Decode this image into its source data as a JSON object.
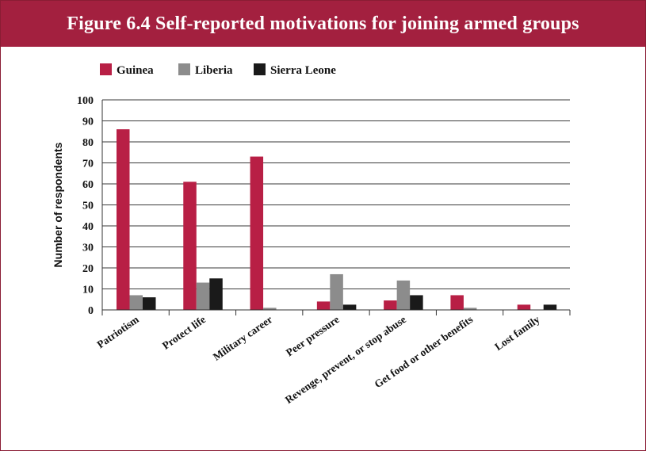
{
  "chart_data": {
    "type": "bar",
    "title": "Figure 6.4 Self-reported motivations for joining armed  groups",
    "xlabel": "",
    "ylabel": "Number of respondents",
    "ylim": [
      0,
      100
    ],
    "yticks": [
      0,
      10,
      20,
      30,
      40,
      50,
      60,
      70,
      80,
      90,
      100
    ],
    "grid": true,
    "legend_position": "top-left",
    "categories": [
      "Patriotism",
      "Protect life",
      "Military career",
      "Peer pressure",
      "Revenge, prevent, or stop abuse",
      "Get food or other benefits",
      "Lost family"
    ],
    "series": [
      {
        "name": "Guinea",
        "color": "#b81f45",
        "values": [
          86,
          61,
          73,
          4,
          4.5,
          7,
          2.5
        ]
      },
      {
        "name": "Liberia",
        "color": "#8c8c8c",
        "values": [
          7,
          13,
          1,
          17,
          14,
          1,
          0
        ]
      },
      {
        "name": "Sierra Leone",
        "color": "#1a1a1a",
        "values": [
          6,
          15,
          0,
          2.5,
          7,
          0,
          2.5
        ]
      }
    ]
  }
}
